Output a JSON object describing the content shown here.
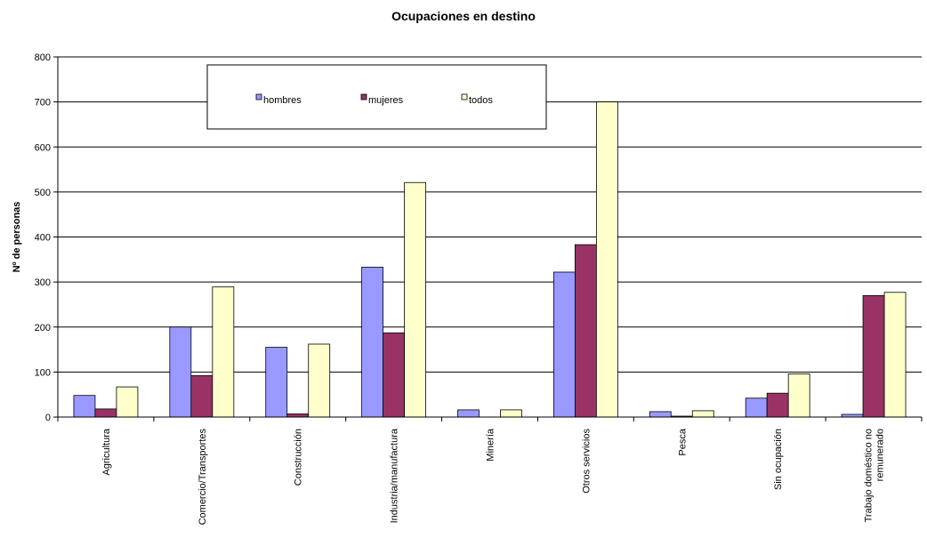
{
  "chart_data": {
    "type": "bar",
    "title": "Ocupaciones en destino",
    "ylabel": "Nº de personas",
    "xlabel": "",
    "ylim": [
      0,
      800
    ],
    "yticks": [
      0,
      100,
      200,
      300,
      400,
      500,
      600,
      700,
      800
    ],
    "grid": true,
    "legend_position": "top",
    "categories": [
      [
        "Agricultura"
      ],
      [
        "Comercio/Transportes"
      ],
      [
        "Construcción"
      ],
      [
        "Industria/manufactura"
      ],
      [
        "Minería"
      ],
      [
        "Otros servicios"
      ],
      [
        "Pesca"
      ],
      [
        "Sin ocupación"
      ],
      [
        "Trabajo doméstico no",
        "remunerado"
      ]
    ],
    "series": [
      {
        "name": "hombres",
        "color": "#9999ff",
        "values": [
          48,
          200,
          155,
          333,
          16,
          322,
          12,
          42,
          6
        ]
      },
      {
        "name": "mujeres",
        "color": "#993366",
        "values": [
          18,
          92,
          7,
          187,
          0,
          383,
          2,
          53,
          270
        ]
      },
      {
        "name": "todos",
        "color": "#ffffcc",
        "values": [
          67,
          289,
          162,
          521,
          16,
          700,
          14,
          96,
          277
        ]
      }
    ]
  }
}
